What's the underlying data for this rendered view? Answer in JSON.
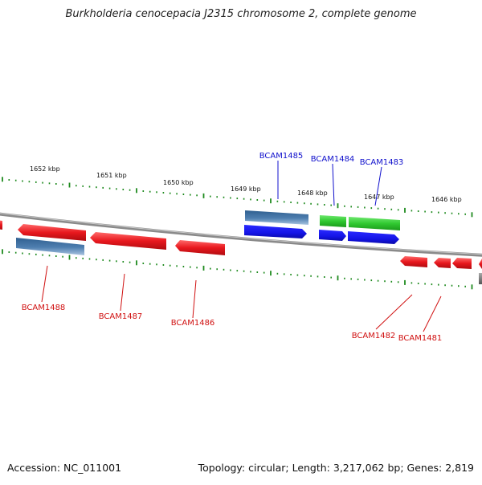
{
  "title": "Burkholderia cenocepacia J2315 chromosome 2, complete genome",
  "footer": {
    "accession": "Accession: NC_011001",
    "stats": "Topology: circular; Length: 3,217,062 bp; Genes: 2,819"
  },
  "ruler": {
    "labels": [
      "1652 kbp",
      "1651 kbp",
      "1650 kbp",
      "1649 kbp",
      "1648 kbp",
      "1647 kbp",
      "1646 kbp"
    ]
  },
  "gene_labels": {
    "top": [
      "BCAM1485",
      "BCAM1484",
      "BCAM1483"
    ],
    "bottom": [
      "BCAM1488",
      "BCAM1487",
      "BCAM1486",
      "BCAM1482",
      "BCAM1481"
    ]
  },
  "colors": {
    "backbone": "#808080",
    "cds_red": "#e8181e",
    "gene_steel": "#4f7fb0",
    "cds_blue": "#1414e6",
    "gene_green": "#30c830",
    "ruler_tick": "#1e8a1e",
    "label_blue": "#1010cc",
    "label_red": "#d01010"
  }
}
